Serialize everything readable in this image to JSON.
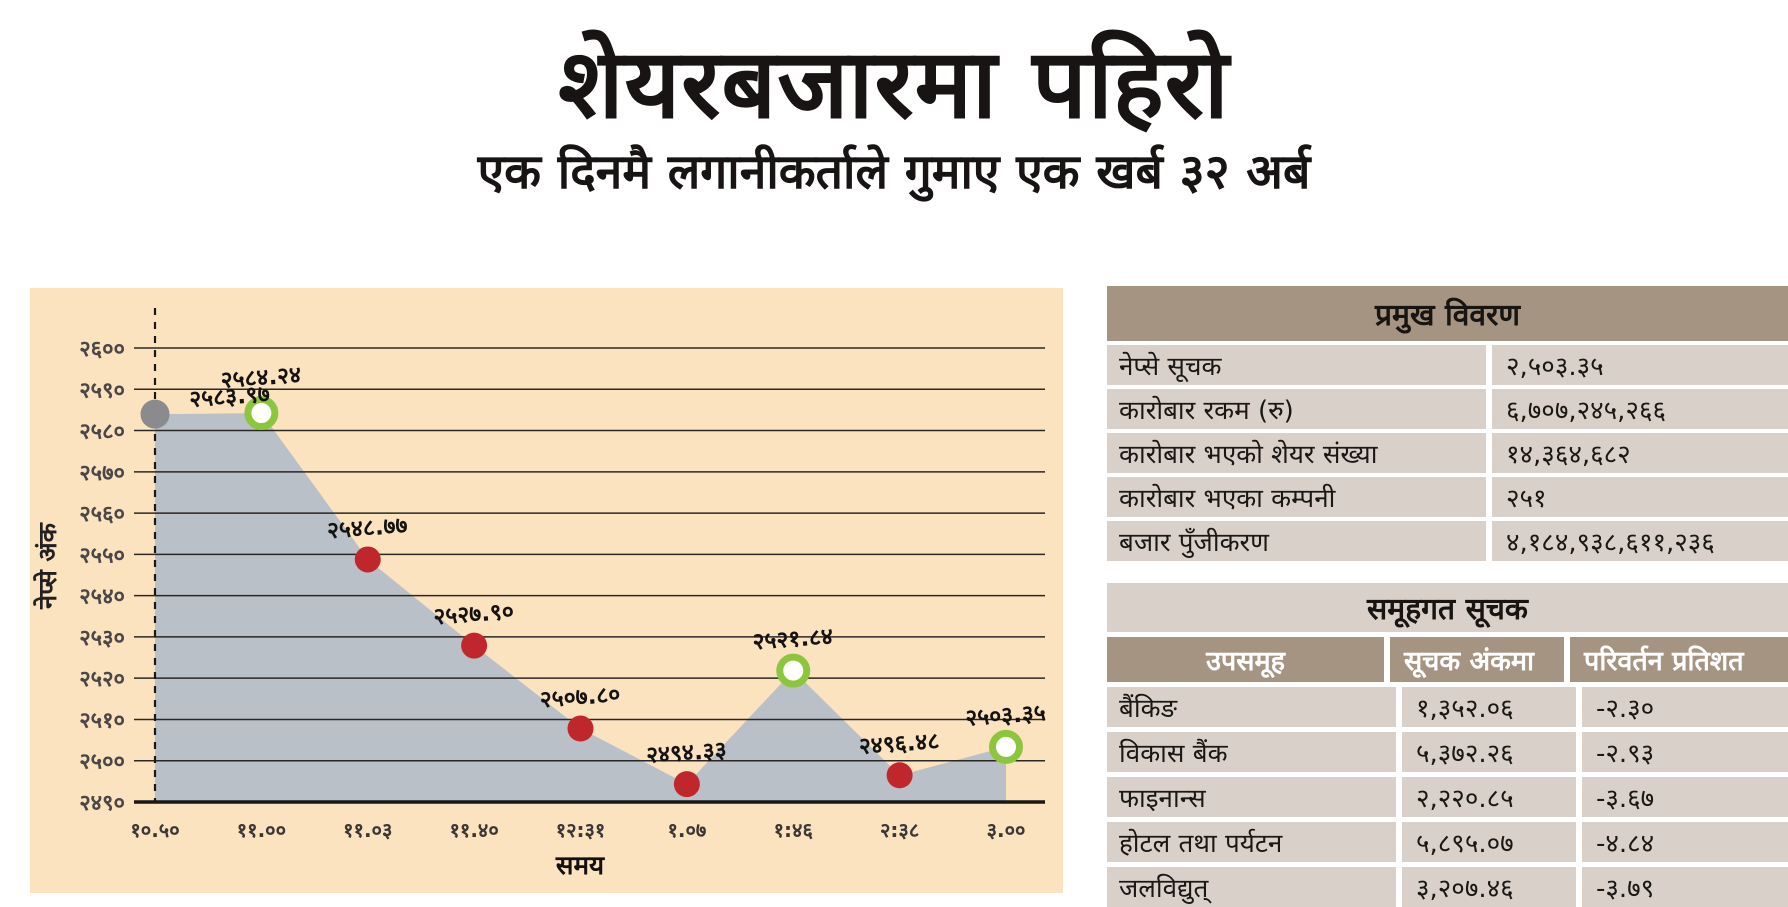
{
  "header": {
    "title": "शेयरबजारमा पहिरो",
    "subtitle": "एक दिनमै लगानीकर्ताले गुमाए एक खर्ब ३२ अर्ब"
  },
  "chart_data": {
    "type": "area",
    "title": "",
    "xlabel": "समय",
    "ylabel": "नेप्से अंक",
    "ylim": [
      2490,
      2600
    ],
    "grid": true,
    "legend": "none",
    "y_ticks": [
      {
        "value": 2600,
        "label": "२६००"
      },
      {
        "value": 2590,
        "label": "२५९०"
      },
      {
        "value": 2580,
        "label": "२५८०"
      },
      {
        "value": 2570,
        "label": "२५७०"
      },
      {
        "value": 2560,
        "label": "२५६०"
      },
      {
        "value": 2550,
        "label": "२५५०"
      },
      {
        "value": 2540,
        "label": "२५४०"
      },
      {
        "value": 2530,
        "label": "२५३०"
      },
      {
        "value": 2520,
        "label": "२५२०"
      },
      {
        "value": 2510,
        "label": "२५१०"
      },
      {
        "value": 2500,
        "label": "२५००"
      },
      {
        "value": 2490,
        "label": "२४९०"
      }
    ],
    "points": [
      {
        "time": "१०.५०",
        "value": 2583.97,
        "label": "२५८३.९७",
        "marker": "gray"
      },
      {
        "time": "११.००",
        "value": 2584.24,
        "label": "२५८४.२४",
        "marker": "green-open"
      },
      {
        "time": "११.०३",
        "value": 2548.77,
        "label": "२५४८.७७",
        "marker": "red"
      },
      {
        "time": "११.४०",
        "value": 2527.9,
        "label": "२५२७.९०",
        "marker": "red"
      },
      {
        "time": "१२:३१",
        "value": 2507.8,
        "label": "२५०७.८०",
        "marker": "red"
      },
      {
        "time": "१.०७",
        "value": 2494.33,
        "label": "२४९४.३३",
        "marker": "red"
      },
      {
        "time": "१:४६",
        "value": 2521.84,
        "label": "२५२१.८४",
        "marker": "green-open"
      },
      {
        "time": "२:३८",
        "value": 2496.48,
        "label": "२४९६.४८",
        "marker": "red"
      },
      {
        "time": "३.००",
        "value": 2503.35,
        "label": "२५०३.३५",
        "marker": "green-open"
      }
    ]
  },
  "colors": {
    "panel_bg": "#fce3bf",
    "area_fill": "#b9c0c7",
    "grid_line": "#2b2725",
    "baseline": "#1a1816",
    "dashed_line": "#1a1816",
    "marker_red": "#c0272d",
    "marker_gray": "#8a8b8d",
    "marker_green_ring": "#8cc63f",
    "marker_green_fill": "#ffffff",
    "table_header_bg": "#a69482",
    "table_row_bg": "#d9d1c9",
    "table_header_text": "#ffffff"
  },
  "summary_table": {
    "title": "प्रमुख विवरण",
    "rows": [
      {
        "label": "नेप्से सूचक",
        "value": "२,५०३.३५"
      },
      {
        "label": "कारोबार रकम (रु)",
        "value": "६,७०७,२४५,२६६"
      },
      {
        "label": "कारोबार भएको शेयर संख्या",
        "value": "१४,३६४,६८२"
      },
      {
        "label": "कारोबार भएका कम्पनी",
        "value": "२५१"
      },
      {
        "label": "बजार पुँजीकरण",
        "value": "४,१८४,९३८,६११,२३६"
      }
    ]
  },
  "group_table": {
    "title": "समूहगत सूचक",
    "headers": [
      "उपसमूह",
      "सूचक अंकमा",
      "परिवर्तन प्रतिशत"
    ],
    "rows": [
      {
        "name": "बैंकिङ",
        "index": "१,३५२.०६",
        "change": "-२.३०"
      },
      {
        "name": "विकास बैंक",
        "index": "५,३७२.२६",
        "change": "-२.९३"
      },
      {
        "name": "फाइनान्स",
        "index": "२,२२०.८५",
        "change": "-३.६७"
      },
      {
        "name": "होटल तथा पर्यटन",
        "index": "५,८९५.०७",
        "change": "-४.८४"
      },
      {
        "name": "जलविद्युत्",
        "index": "३,२०७.४६",
        "change": "-३.७९"
      }
    ]
  }
}
